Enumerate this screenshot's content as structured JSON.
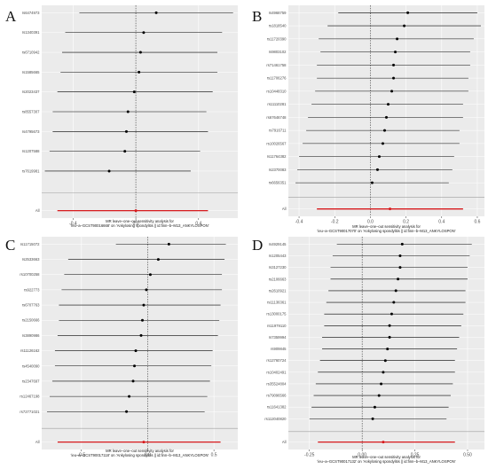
{
  "chart_data": [
    {
      "type": "forest",
      "panel_label": "A",
      "snps": [
        "rs6474973",
        "rs1340391",
        "rs6710942",
        "rs1585665",
        "rs2023437",
        "rs8557307",
        "rs4795673",
        "rs1207588",
        "rs7619981"
      ],
      "estimates": [
        0.13,
        0.05,
        0.03,
        0.02,
        -0.01,
        -0.05,
        -0.06,
        -0.07,
        -0.17
      ],
      "ci_low": [
        -0.36,
        -0.45,
        -0.47,
        -0.48,
        -0.5,
        -0.53,
        -0.53,
        -0.55,
        -0.58
      ],
      "ci_high": [
        0.62,
        0.55,
        0.52,
        0.52,
        0.49,
        0.45,
        0.46,
        0.41,
        0.35
      ],
      "all_label": "All",
      "all": {
        "estimate": 0.0,
        "ci_low": -0.5,
        "ci_high": 0.46
      },
      "xlim": [
        -0.6,
        0.65
      ],
      "xticks": [
        -0.4,
        0.0,
        0.4
      ],
      "xtick_labels": [
        "-0.4",
        "0.0",
        "0.4"
      ],
      "caption_line1": "MR leave–one–out sensitivity analysis for",
      "caption_line2": "'ieu–a–GCST90016668' on 'Ankylosing spondylitis || id:finn–b–M13_ANKYLOSPON'"
    },
    {
      "type": "forest",
      "panel_label": "B",
      "snps": [
        "rs4968759",
        "rs1818540",
        "rs11720390",
        "rs9803102",
        "rs71461758",
        "rs11706276",
        "rs10448310",
        "rs11110281",
        "rs67646748",
        "rs7916711",
        "rs10026567",
        "rs11764382",
        "rs2370083",
        "rs6656351"
      ],
      "estimates": [
        0.21,
        0.19,
        0.15,
        0.14,
        0.13,
        0.13,
        0.12,
        0.1,
        0.09,
        0.08,
        0.07,
        0.05,
        0.04,
        0.01
      ],
      "ci_low": [
        -0.18,
        -0.24,
        -0.29,
        -0.28,
        -0.3,
        -0.3,
        -0.31,
        -0.33,
        -0.35,
        -0.36,
        -0.38,
        -0.4,
        -0.41,
        -0.42
      ],
      "ci_high": [
        0.6,
        0.62,
        0.58,
        0.56,
        0.56,
        0.55,
        0.55,
        0.52,
        0.52,
        0.5,
        0.5,
        0.47,
        0.46,
        0.44
      ],
      "all_label": "All",
      "all": {
        "estimate": 0.11,
        "ci_low": -0.3,
        "ci_high": 0.52
      },
      "xlim": [
        -0.46,
        0.64
      ],
      "xticks": [
        -0.4,
        -0.2,
        0.0,
        0.2,
        0.4,
        0.6
      ],
      "xtick_labels": [
        "-0.4",
        "-0.2",
        "0.0",
        "0.2",
        "0.4",
        "0.6"
      ],
      "caption_line1": "MR leave–one–out sensitivity analysis for",
      "caption_line2": "'ieu–a–GCST90017070' on 'Ankylosing spondylitis || id:finn–b–M13_ANKYLOSPON'"
    },
    {
      "type": "forest",
      "panel_label": "C",
      "snps": [
        "rs11715072",
        "rs2533663",
        "rs10700258",
        "rs922773",
        "rs6707763",
        "rs2150666",
        "rs3890986",
        "rs11126162",
        "rs4540090",
        "rs2347697",
        "rs12467198",
        "rs72771021"
      ],
      "estimates": [
        0.16,
        0.08,
        0.02,
        -0.01,
        -0.03,
        -0.04,
        -0.05,
        -0.09,
        -0.1,
        -0.11,
        -0.14,
        -0.16
      ],
      "ci_low": [
        -0.24,
        -0.6,
        -0.63,
        -0.65,
        -0.67,
        -0.67,
        -0.68,
        -0.7,
        -0.7,
        -0.72,
        -0.74,
        -0.76
      ],
      "ci_high": [
        0.59,
        0.58,
        0.56,
        0.56,
        0.55,
        0.54,
        0.53,
        0.49,
        0.48,
        0.47,
        0.45,
        0.43
      ],
      "all_label": "All",
      "all": {
        "estimate": -0.03,
        "ci_low": -0.68,
        "ci_high": 0.55
      },
      "xlim": [
        -0.8,
        0.68
      ],
      "xticks": [
        -0.5,
        0.0,
        0.5
      ],
      "xtick_labels": [
        "-0.5",
        "0.0",
        "0.5"
      ],
      "caption_line1": "MR leave–one–out sensitivity analysis for",
      "caption_line2": "'ieu–a–GCST90017118' on 'Ankylosing spondylitis || id:finn–b–M13_ANKYLOSPON'"
    },
    {
      "type": "forest",
      "panel_label": "D",
      "snps": [
        "rs4929145",
        "rs1205443",
        "rs3127230",
        "rs2106663",
        "rs2610921",
        "rs11136361",
        "rs13000175",
        "rs11979110",
        "rs7359994",
        "rs909845",
        "rs12760724",
        "rs10402491",
        "rs35524804",
        "rs79096566",
        "rs11641382",
        "rs112040820"
      ],
      "estimates": [
        0.19,
        0.18,
        0.18,
        0.17,
        0.16,
        0.15,
        0.14,
        0.13,
        0.13,
        0.12,
        0.11,
        0.1,
        0.09,
        0.08,
        0.06,
        0.05
      ],
      "ci_low": [
        -0.12,
        -0.14,
        -0.15,
        -0.15,
        -0.16,
        -0.17,
        -0.18,
        -0.18,
        -0.19,
        -0.19,
        -0.2,
        -0.21,
        -0.22,
        -0.23,
        -0.24,
        -0.25
      ],
      "ci_high": [
        0.52,
        0.51,
        0.5,
        0.5,
        0.49,
        0.49,
        0.48,
        0.47,
        0.46,
        0.45,
        0.44,
        0.44,
        0.43,
        0.42,
        0.41,
        0.4
      ],
      "all_label": "All",
      "all": {
        "estimate": 0.1,
        "ci_low": -0.21,
        "ci_high": 0.44
      },
      "xlim": [
        -0.35,
        0.58
      ],
      "xticks": [
        -0.25,
        0.0,
        0.25,
        0.5
      ],
      "xtick_labels": [
        "-0.25",
        "0.00",
        "0.25",
        "0.50"
      ],
      "caption_line1": "MR leave–one–out sensitivity analysis for",
      "caption_line2": "'ieu–a–GCST90017132' on 'Ankylosing spondylitis || id:finn–b–M13_ANKYLOSPON'"
    }
  ],
  "colors": {
    "panel_bg": "#ebebeb",
    "grid": "#ffffff",
    "line": "#000000",
    "all_line": "#d7191c",
    "separator": "#9e9e9e"
  }
}
